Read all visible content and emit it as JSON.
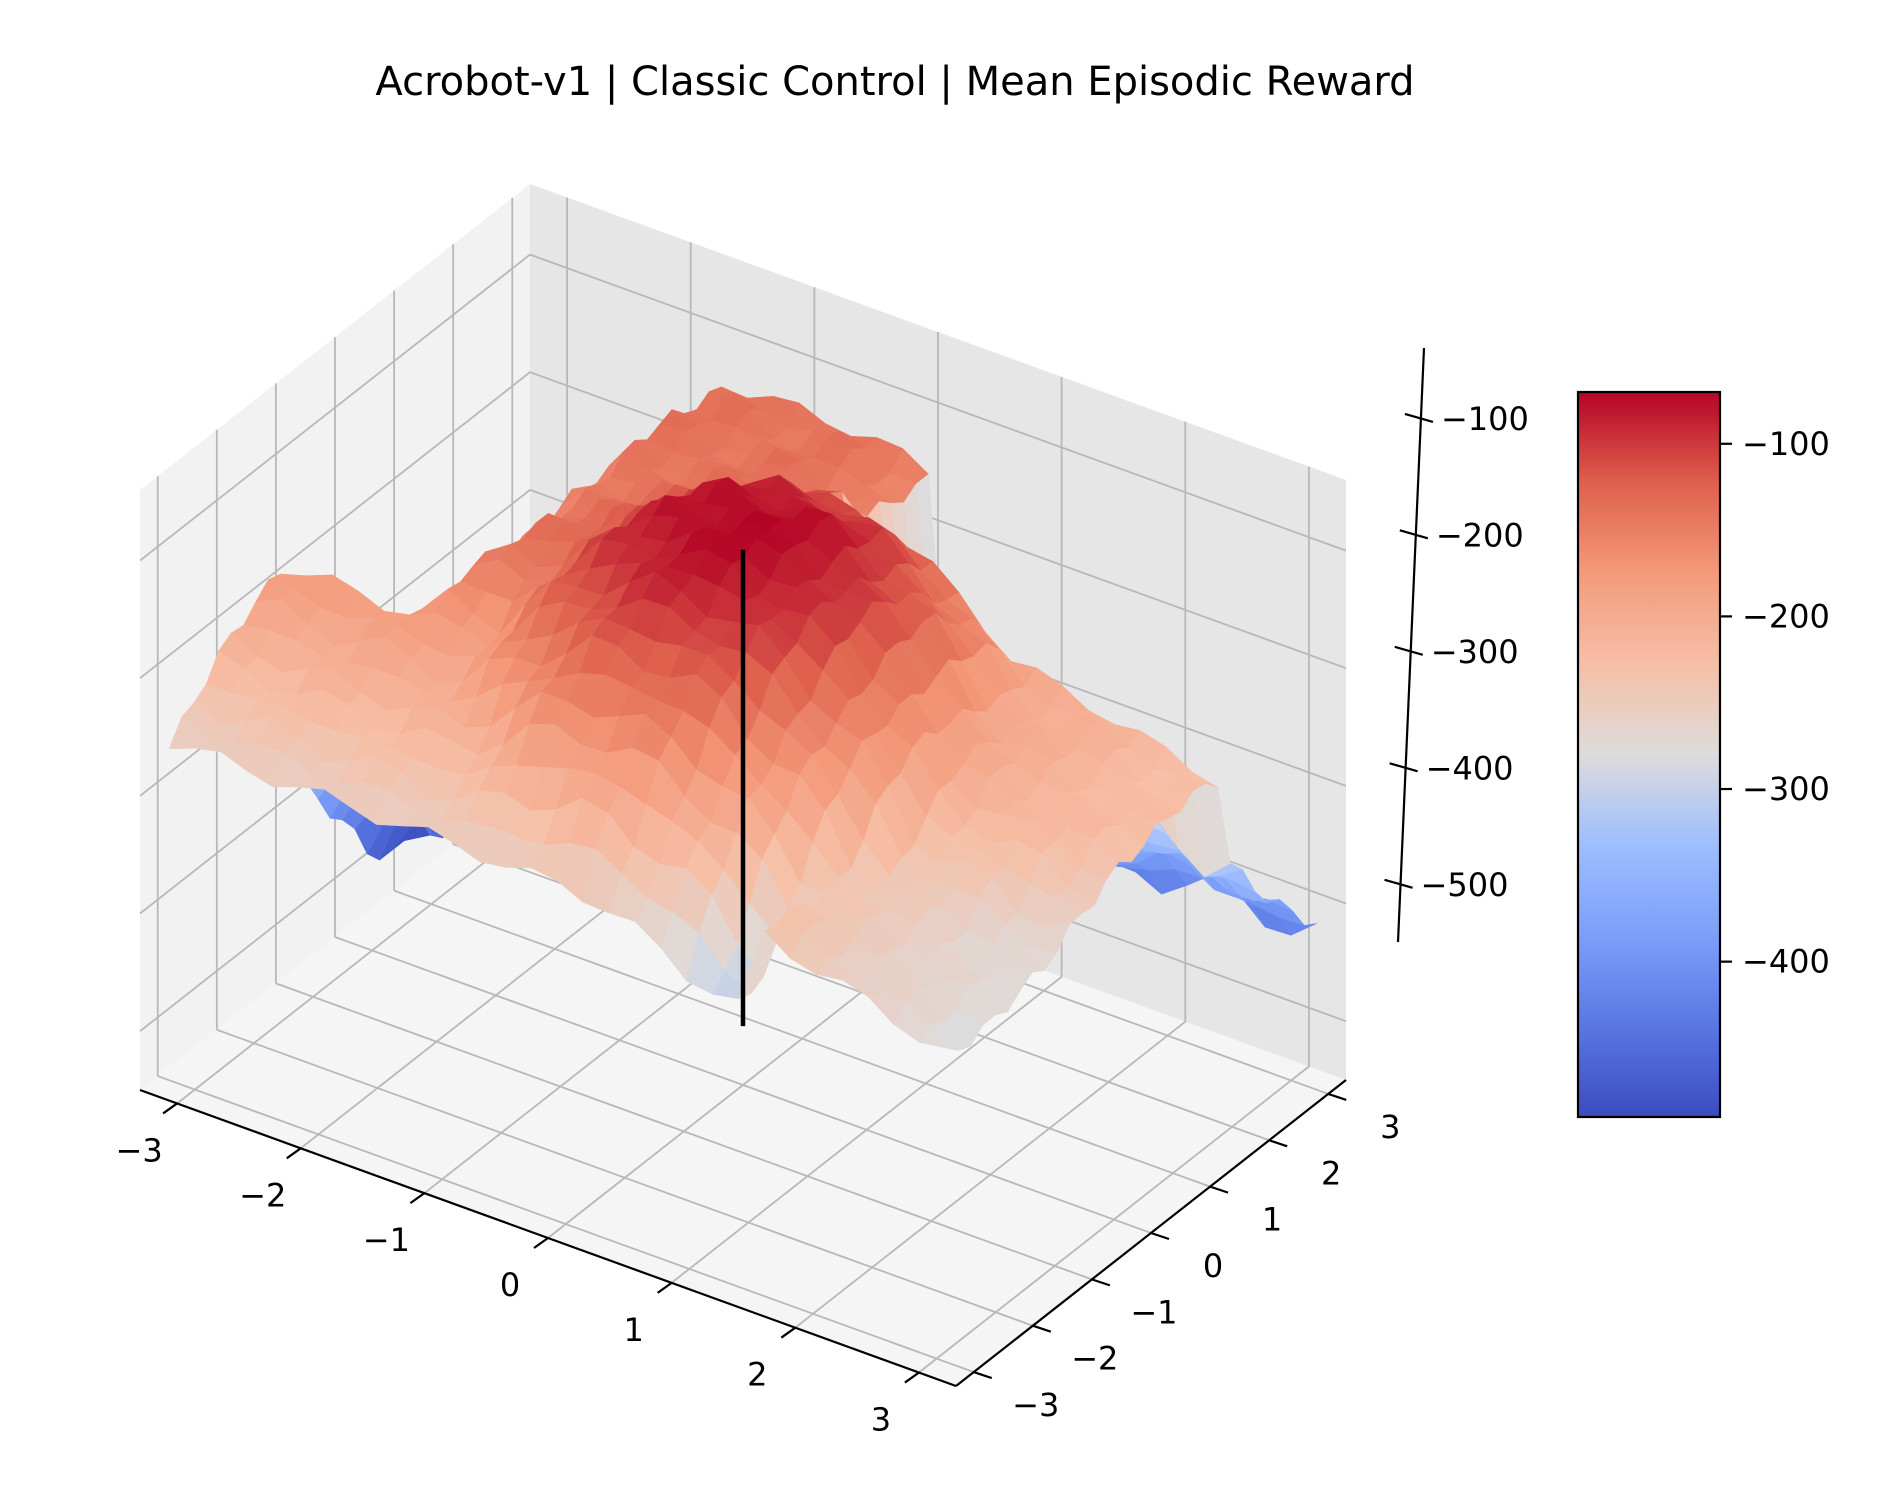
{
  "chart_data": {
    "type": "surface3d",
    "title": "Acrobot-v1 | Classic Control | Mean Episodic Reward",
    "xlabel": "",
    "ylabel": "",
    "zlabel": "",
    "x_ticks": [
      "−3",
      "−2",
      "−1",
      "0",
      "1",
      "2",
      "3"
    ],
    "y_ticks": [
      "−3",
      "−2",
      "−1",
      "0",
      "1",
      "2",
      "3"
    ],
    "z_ticks": [
      "−500",
      "−400",
      "−300",
      "−200",
      "−100"
    ],
    "xlim": [
      -3.3,
      3.3
    ],
    "ylim": [
      -3.3,
      3.3
    ],
    "zlim": [
      -550,
      -40
    ],
    "colormap": "coolwarm",
    "colorbar": {
      "range": [
        -490,
        -70
      ],
      "ticks": [
        "−400",
        "−300",
        "−200",
        "−100"
      ],
      "tick_values": [
        -400,
        -300,
        -200,
        -100
      ]
    },
    "peak_marker": {
      "x": 0,
      "y": 0,
      "z_bottom": -500,
      "z_top": -95
    },
    "surface_description": "Gaussian-like ridge peaking near (0,0) at about -70, plateau around -150 for negative x and positive y, dropping to about -480 for x < -2.5 and positive y, low values near -450 for large positive y with positive x",
    "grid_on": true
  }
}
